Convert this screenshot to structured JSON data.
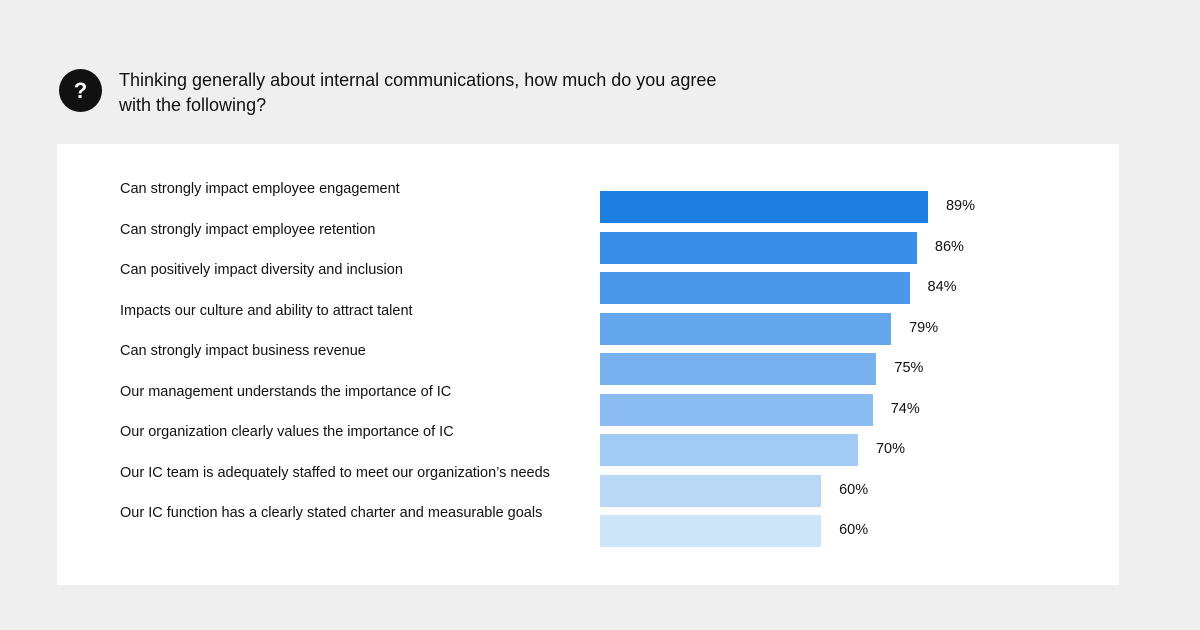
{
  "header": {
    "icon_glyph": "?",
    "icon_name": "question-mark-icon",
    "question": "Thinking generally about internal communications, how much do you agree with the following?"
  },
  "chart_data": {
    "type": "bar",
    "orientation": "horizontal",
    "categories": [
      "Can strongly impact employee engagement",
      "Can strongly impact employee retention",
      "Can positively impact diversity and inclusion",
      "Impacts our culture and ability to attract talent",
      "Can strongly impact business revenue",
      "Our management understands the importance of IC",
      "Our organization clearly values the importance of IC",
      "Our IC team is adequately staffed to meet our organization’s needs",
      "Our IC function has a clearly stated charter and measurable goals"
    ],
    "values": [
      89,
      86,
      84,
      79,
      75,
      74,
      70,
      60,
      60
    ],
    "value_labels": [
      "89%",
      "86%",
      "84%",
      "79%",
      "75%",
      "74%",
      "70%",
      "60%",
      "60%"
    ],
    "colors": [
      "#1e7fe0",
      "#3a8ee6",
      "#4b97e8",
      "#64a6ec",
      "#78b1ee",
      "#8bbcf1",
      "#a1caf4",
      "#b8d8f6",
      "#cce5f9"
    ],
    "xlim": [
      0,
      100
    ],
    "grid": false
  }
}
